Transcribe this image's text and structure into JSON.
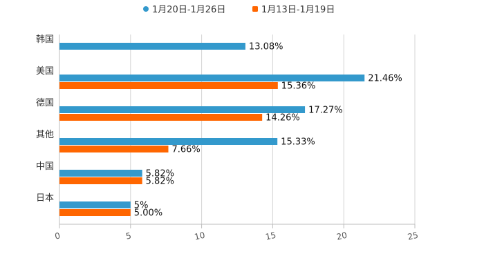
{
  "chart_data": {
    "type": "bar",
    "orientation": "horizontal",
    "title": "",
    "xlabel": "",
    "ylabel": "",
    "xlim": [
      0,
      25
    ],
    "xticks": [
      0,
      5,
      10,
      15,
      20,
      25
    ],
    "grid": true,
    "legend_position": "top-center",
    "categories": [
      "韩国",
      "美国",
      "德国",
      "其他",
      "中国",
      "日本"
    ],
    "series": [
      {
        "name": "1月20日-1月26日",
        "color": "#3399cc",
        "marker": "circle",
        "values": [
          13.08,
          21.46,
          17.27,
          15.33,
          5.82,
          5
        ],
        "labels": [
          "13.08%",
          "21.46%",
          "17.27%",
          "15.33%",
          "5.82%",
          "5%"
        ]
      },
      {
        "name": "1月13日-1月19日",
        "color": "#ff6600",
        "marker": "square",
        "values": [
          null,
          15.36,
          14.26,
          7.66,
          5.82,
          5.0
        ],
        "labels": [
          "",
          "15.36%",
          "14.26%",
          "7.66%",
          "5.82%",
          "5.00%"
        ]
      }
    ]
  }
}
